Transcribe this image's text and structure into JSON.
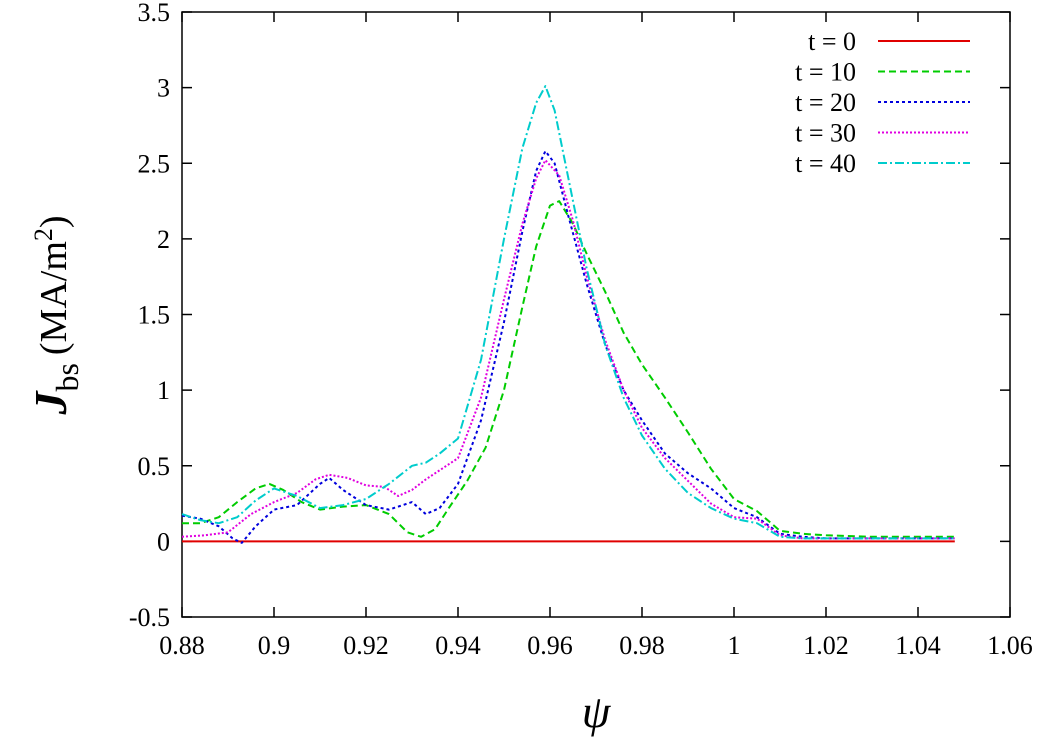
{
  "chart_data": {
    "type": "line",
    "xlabel": "ψ",
    "ylabel": {
      "main": "J",
      "sub": "bs",
      "units_open": "(MA/m",
      "units_sup": "2",
      "units_close": ")"
    },
    "xlim": [
      0.88,
      1.06
    ],
    "ylim": [
      -0.5,
      3.5
    ],
    "xticks": [
      "0.88",
      "0.9",
      "0.92",
      "0.94",
      "0.96",
      "0.98",
      "1",
      "1.02",
      "1.04",
      "1.06"
    ],
    "xtick_values": [
      0.88,
      0.9,
      0.92,
      0.94,
      0.96,
      0.98,
      1.0,
      1.02,
      1.04,
      1.06
    ],
    "yticks": [
      "-0.5",
      "0",
      "0.5",
      "1",
      "1.5",
      "2",
      "2.5",
      "3",
      "3.5"
    ],
    "ytick_values": [
      -0.5,
      0,
      0.5,
      1,
      1.5,
      2,
      2.5,
      3,
      3.5
    ],
    "grid": false,
    "legend_position": "top-right",
    "series": [
      {
        "name": "t = 0",
        "color": "#e00000",
        "dash": "",
        "x": [
          0.88,
          1.048
        ],
        "y": [
          0.0,
          0.0
        ]
      },
      {
        "name": "t = 10",
        "color": "#00cc00",
        "dash": "7,4",
        "x": [
          0.88,
          0.884,
          0.888,
          0.892,
          0.896,
          0.899,
          0.902,
          0.906,
          0.91,
          0.915,
          0.92,
          0.925,
          0.929,
          0.932,
          0.935,
          0.938,
          0.942,
          0.946,
          0.95,
          0.954,
          0.957,
          0.96,
          0.962,
          0.965,
          0.968,
          0.972,
          0.976,
          0.98,
          0.985,
          0.99,
          0.995,
          1.0,
          1.005,
          1.01,
          1.015,
          1.02,
          1.03,
          1.04,
          1.048
        ],
        "y": [
          0.12,
          0.12,
          0.16,
          0.26,
          0.35,
          0.38,
          0.34,
          0.26,
          0.21,
          0.23,
          0.24,
          0.18,
          0.06,
          0.03,
          0.08,
          0.22,
          0.4,
          0.62,
          1.0,
          1.55,
          1.95,
          2.22,
          2.25,
          2.1,
          1.9,
          1.65,
          1.38,
          1.17,
          0.95,
          0.72,
          0.48,
          0.28,
          0.2,
          0.07,
          0.05,
          0.04,
          0.03,
          0.03,
          0.03
        ]
      },
      {
        "name": "t = 20",
        "color": "#0000dd",
        "dash": "3,3",
        "x": [
          0.88,
          0.884,
          0.888,
          0.891,
          0.893,
          0.896,
          0.9,
          0.905,
          0.91,
          0.912,
          0.915,
          0.92,
          0.925,
          0.93,
          0.933,
          0.936,
          0.94,
          0.945,
          0.95,
          0.954,
          0.957,
          0.959,
          0.961,
          0.964,
          0.968,
          0.972,
          0.976,
          0.98,
          0.985,
          0.99,
          0.995,
          1.0,
          1.005,
          1.01,
          1.015,
          1.02,
          1.03,
          1.04,
          1.048
        ],
        "y": [
          0.17,
          0.15,
          0.1,
          0.02,
          -0.01,
          0.1,
          0.21,
          0.24,
          0.38,
          0.42,
          0.34,
          0.24,
          0.21,
          0.26,
          0.18,
          0.22,
          0.38,
          0.8,
          1.45,
          2.05,
          2.45,
          2.58,
          2.5,
          2.15,
          1.7,
          1.3,
          1.0,
          0.8,
          0.58,
          0.45,
          0.35,
          0.22,
          0.16,
          0.05,
          0.03,
          0.02,
          0.02,
          0.02,
          0.02
        ]
      },
      {
        "name": "t = 30",
        "color": "#e000e0",
        "dash": "2,2",
        "x": [
          0.88,
          0.885,
          0.89,
          0.895,
          0.9,
          0.905,
          0.909,
          0.912,
          0.916,
          0.92,
          0.924,
          0.927,
          0.93,
          0.933,
          0.936,
          0.94,
          0.945,
          0.95,
          0.954,
          0.957,
          0.959,
          0.962,
          0.965,
          0.968,
          0.972,
          0.976,
          0.98,
          0.985,
          0.99,
          0.995,
          1.0,
          1.005,
          1.01,
          1.015,
          1.02,
          1.03,
          1.04,
          1.048
        ],
        "y": [
          0.03,
          0.04,
          0.06,
          0.18,
          0.26,
          0.32,
          0.41,
          0.44,
          0.42,
          0.37,
          0.36,
          0.3,
          0.34,
          0.41,
          0.47,
          0.55,
          0.95,
          1.6,
          2.1,
          2.4,
          2.52,
          2.42,
          2.12,
          1.75,
          1.33,
          1.0,
          0.75,
          0.55,
          0.4,
          0.25,
          0.16,
          0.15,
          0.04,
          0.02,
          0.02,
          0.02,
          0.02,
          0.02
        ]
      },
      {
        "name": "t = 40",
        "color": "#00cccc",
        "dash": "9,3,2,3",
        "x": [
          0.88,
          0.884,
          0.888,
          0.892,
          0.896,
          0.9,
          0.905,
          0.91,
          0.915,
          0.92,
          0.925,
          0.93,
          0.933,
          0.936,
          0.94,
          0.945,
          0.95,
          0.954,
          0.957,
          0.959,
          0.961,
          0.964,
          0.968,
          0.972,
          0.976,
          0.98,
          0.985,
          0.99,
          0.995,
          1.0,
          1.005,
          1.01,
          1.015,
          1.02,
          1.03,
          1.04,
          1.048
        ],
        "y": [
          0.18,
          0.14,
          0.12,
          0.16,
          0.27,
          0.35,
          0.3,
          0.22,
          0.24,
          0.28,
          0.38,
          0.5,
          0.52,
          0.58,
          0.68,
          1.2,
          2.0,
          2.6,
          2.9,
          3.01,
          2.85,
          2.4,
          1.8,
          1.3,
          0.95,
          0.7,
          0.48,
          0.32,
          0.22,
          0.15,
          0.12,
          0.03,
          0.02,
          0.02,
          0.02,
          0.02,
          0.02
        ]
      }
    ]
  }
}
